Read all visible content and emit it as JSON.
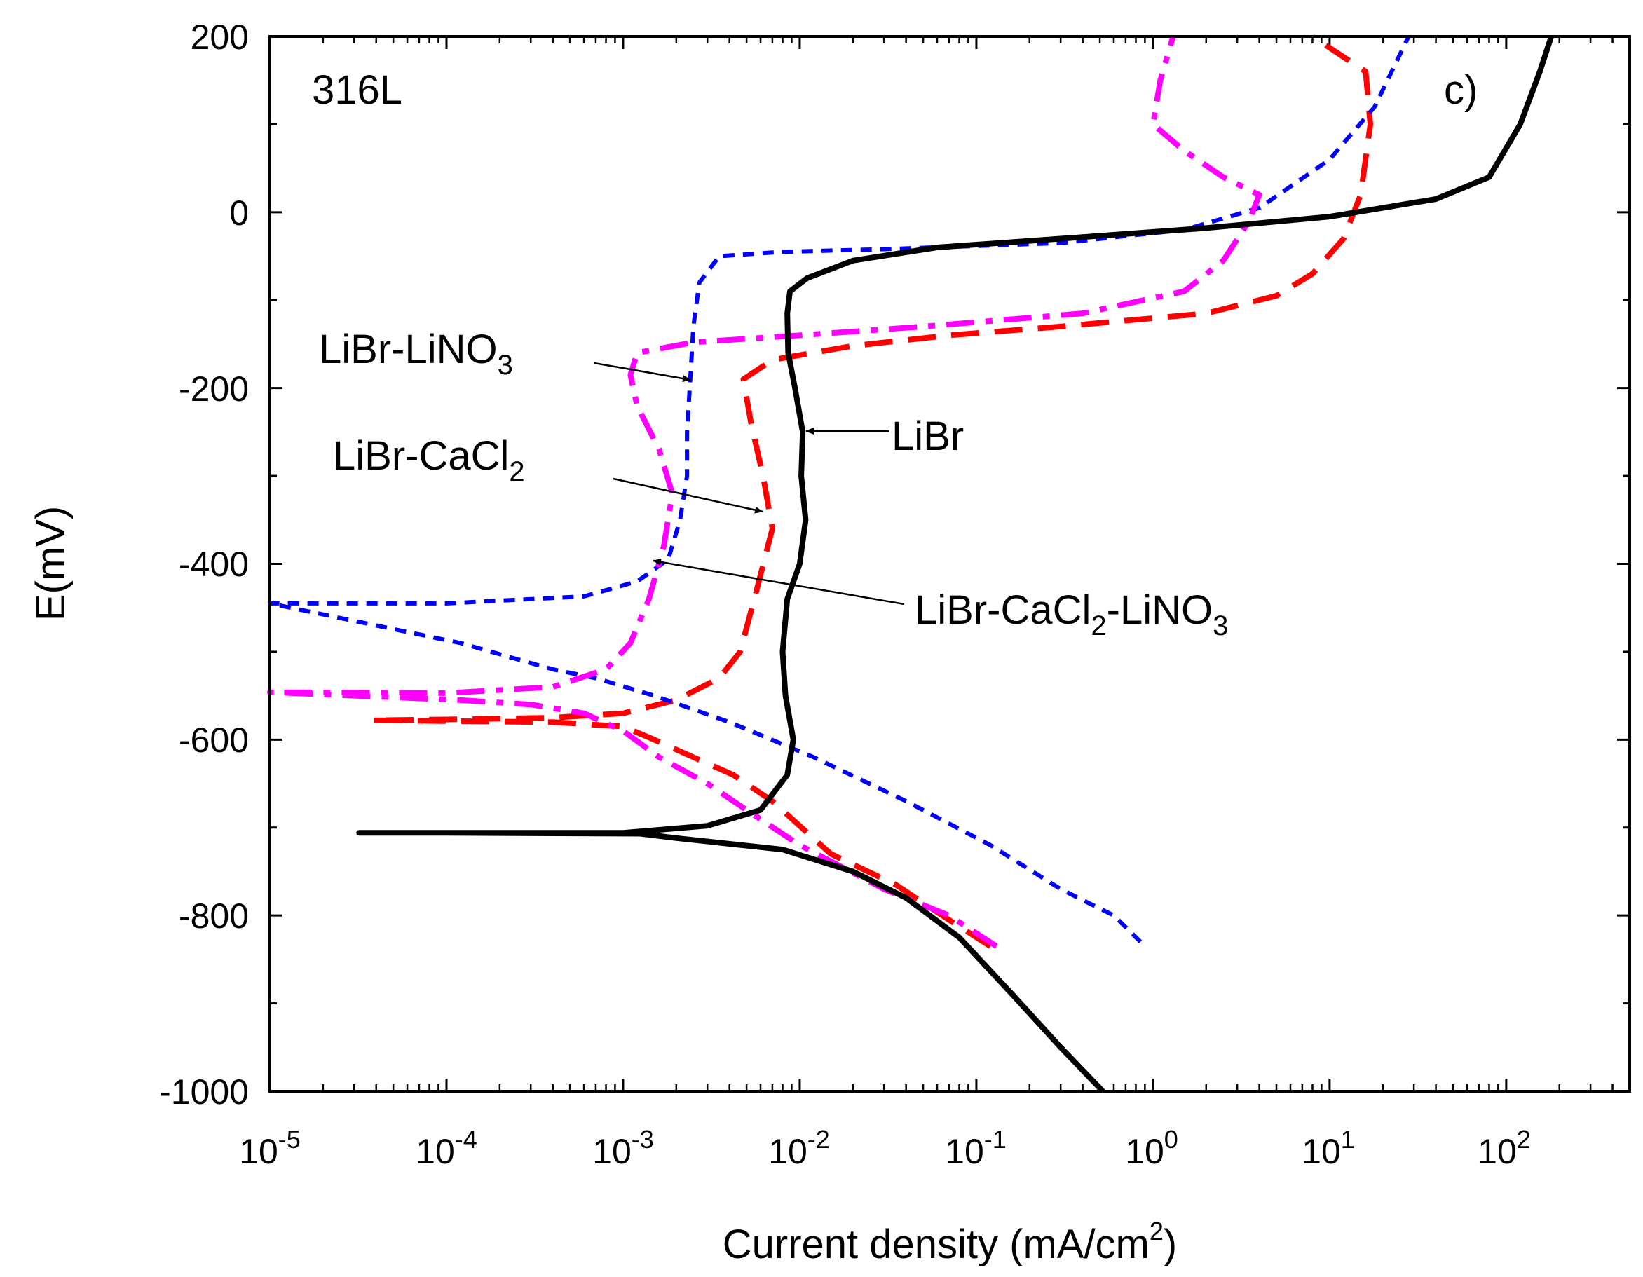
{
  "chart_data": {
    "type": "line",
    "title": "",
    "panel_label": "c)",
    "material_label": "316L",
    "xlabel": {
      "main": "Current density (mA/cm",
      "sup": "2",
      "end": ")"
    },
    "ylabel": "E(mV)",
    "xscale": "log",
    "xlim": [
      1e-05,
      500
    ],
    "ylim": [
      -1000,
      200
    ],
    "x_ticks": [
      {
        "base": "10",
        "exp": "-5"
      },
      {
        "base": "10",
        "exp": "-4"
      },
      {
        "base": "10",
        "exp": "-3"
      },
      {
        "base": "10",
        "exp": "-2"
      },
      {
        "base": "10",
        "exp": "-1"
      },
      {
        "base": "10",
        "exp": "0"
      },
      {
        "base": "10",
        "exp": "1"
      },
      {
        "base": "10",
        "exp": "2"
      }
    ],
    "y_ticks": [
      "200",
      "0",
      "-200",
      "-400",
      "-600",
      "-800",
      "-1000"
    ],
    "y_tick_values": [
      200,
      0,
      -200,
      -400,
      -600,
      -800,
      -1000
    ],
    "series": [
      {
        "name": "LiBr",
        "color": "#000000",
        "style": "solid",
        "points": [
          [
            0.52,
            -1000
          ],
          [
            0.3,
            -950
          ],
          [
            0.16,
            -890
          ],
          [
            0.08,
            -825
          ],
          [
            0.04,
            -780
          ],
          [
            0.02,
            -750
          ],
          [
            0.008,
            -725
          ],
          [
            0.002,
            -712
          ],
          [
            0.00125,
            -707
          ],
          [
            0.0001,
            -706
          ],
          [
            3.2e-05,
            -706
          ],
          [
            0.0001,
            -706
          ],
          [
            0.001,
            -706
          ],
          [
            0.003,
            -698
          ],
          [
            0.006,
            -680
          ],
          [
            0.0085,
            -640
          ],
          [
            0.0092,
            -600
          ],
          [
            0.0083,
            -550
          ],
          [
            0.008,
            -500
          ],
          [
            0.0085,
            -440
          ],
          [
            0.01,
            -400
          ],
          [
            0.0108,
            -350
          ],
          [
            0.0102,
            -300
          ],
          [
            0.0104,
            -250
          ],
          [
            0.0094,
            -200
          ],
          [
            0.0086,
            -160
          ],
          [
            0.0085,
            -115
          ],
          [
            0.0088,
            -90
          ],
          [
            0.011,
            -75
          ],
          [
            0.02,
            -55
          ],
          [
            0.06,
            -40
          ],
          [
            0.3,
            -30
          ],
          [
            2,
            -18
          ],
          [
            10,
            -5
          ],
          [
            40,
            15
          ],
          [
            80,
            40
          ],
          [
            120,
            100
          ],
          [
            155,
            160
          ],
          [
            180,
            200
          ]
        ]
      },
      {
        "name": "LiBr-CaCl2",
        "color": "#ff0000",
        "style": "dash-long",
        "points": [
          [
            0.12,
            -835
          ],
          [
            0.07,
            -805
          ],
          [
            0.035,
            -765
          ],
          [
            0.015,
            -730
          ],
          [
            0.007,
            -670
          ],
          [
            0.0042,
            -640
          ],
          [
            0.0025,
            -620
          ],
          [
            0.0015,
            -600
          ],
          [
            0.001,
            -585
          ],
          [
            0.0004,
            -580
          ],
          [
            3.8e-05,
            -578
          ],
          [
            0.0001,
            -577
          ],
          [
            0.0004,
            -575
          ],
          [
            0.001,
            -570
          ],
          [
            0.002,
            -555
          ],
          [
            0.0035,
            -530
          ],
          [
            0.0046,
            -500
          ],
          [
            0.0057,
            -430
          ],
          [
            0.007,
            -360
          ],
          [
            0.0062,
            -300
          ],
          [
            0.0053,
            -240
          ],
          [
            0.0048,
            -190
          ],
          [
            0.007,
            -168
          ],
          [
            0.02,
            -152
          ],
          [
            0.07,
            -140
          ],
          [
            0.3,
            -130
          ],
          [
            2,
            -115
          ],
          [
            5,
            -95
          ],
          [
            8,
            -70
          ],
          [
            12,
            -30
          ],
          [
            15,
            20
          ],
          [
            17,
            100
          ],
          [
            16,
            160
          ],
          [
            8,
            200
          ]
        ]
      },
      {
        "name": "LiBr-LiNO3",
        "color": "#0000ff",
        "style": "dash-short",
        "points": [
          [
            0.85,
            -830
          ],
          [
            0.6,
            -800
          ],
          [
            0.3,
            -770
          ],
          [
            0.12,
            -720
          ],
          [
            0.04,
            -670
          ],
          [
            0.012,
            -620
          ],
          [
            0.004,
            -580
          ],
          [
            0.0015,
            -550
          ],
          [
            0.0007,
            -530
          ],
          [
            0.0004,
            -520
          ],
          [
            0.00012,
            -490
          ],
          [
            1e-05,
            -445
          ],
          [
            0.0001,
            -445
          ],
          [
            0.0006,
            -437
          ],
          [
            0.0012,
            -420
          ],
          [
            0.0018,
            -395
          ],
          [
            0.0021,
            -350
          ],
          [
            0.0023,
            -300
          ],
          [
            0.0023,
            -250
          ],
          [
            0.0024,
            -190
          ],
          [
            0.0025,
            -130
          ],
          [
            0.0027,
            -80
          ],
          [
            0.0035,
            -50
          ],
          [
            0.008,
            -45
          ],
          [
            0.03,
            -42
          ],
          [
            0.3,
            -35
          ],
          [
            1.5,
            -20
          ],
          [
            4,
            5
          ],
          [
            10,
            60
          ],
          [
            18,
            120
          ],
          [
            28,
            200
          ]
        ]
      },
      {
        "name": "LiBr-CaCl2-LiNO3",
        "color": "#ff00ff",
        "style": "dash-dot",
        "points": [
          [
            0.13,
            -835
          ],
          [
            0.07,
            -800
          ],
          [
            0.03,
            -770
          ],
          [
            0.01,
            -720
          ],
          [
            0.005,
            -680
          ],
          [
            0.003,
            -650
          ],
          [
            0.0016,
            -620
          ],
          [
            0.001,
            -590
          ],
          [
            0.0006,
            -570
          ],
          [
            0.0003,
            -560
          ],
          [
            0.00012,
            -555
          ],
          [
            1e-05,
            -546
          ],
          [
            0.0001,
            -547
          ],
          [
            0.0004,
            -540
          ],
          [
            0.0008,
            -520
          ],
          [
            0.0011,
            -490
          ],
          [
            0.0014,
            -440
          ],
          [
            0.0017,
            -380
          ],
          [
            0.0019,
            -320
          ],
          [
            0.0016,
            -270
          ],
          [
            0.0012,
            -220
          ],
          [
            0.0011,
            -185
          ],
          [
            0.0012,
            -160
          ],
          [
            0.0025,
            -148
          ],
          [
            0.01,
            -140
          ],
          [
            0.05,
            -130
          ],
          [
            0.4,
            -115
          ],
          [
            1.5,
            -90
          ],
          [
            2.5,
            -55
          ],
          [
            3.5,
            -10
          ],
          [
            4,
            20
          ],
          [
            2.5,
            40
          ],
          [
            1.5,
            70
          ],
          [
            1,
            100
          ],
          [
            1.1,
            150
          ],
          [
            1.3,
            200
          ]
        ]
      }
    ],
    "annotations": [
      {
        "id": "libr-lino3",
        "main": "LiBr-LiNO",
        "sub": "3",
        "tail": ""
      },
      {
        "id": "libr-cacl2",
        "main": "LiBr-CaCl",
        "sub": "2",
        "tail": ""
      },
      {
        "id": "libr",
        "main": "LiBr",
        "sub": "",
        "tail": ""
      },
      {
        "id": "libr-cacl2-lino3",
        "main": "LiBr-CaCl",
        "sub": "2",
        "tail": "-LiNO",
        "sub2": "3"
      }
    ]
  }
}
